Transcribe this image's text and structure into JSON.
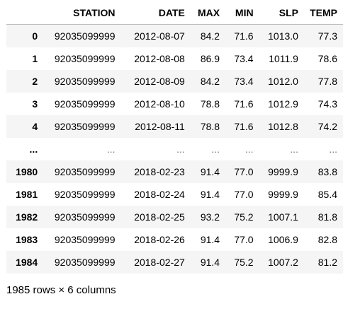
{
  "table": {
    "columns": [
      "",
      "STATION",
      "DATE",
      "MAX",
      "MIN",
      "SLP",
      "TEMP"
    ],
    "rows": [
      {
        "index": "0",
        "cells": [
          "92035099999",
          "2012-08-07",
          "84.2",
          "71.6",
          "1013.0",
          "77.3"
        ]
      },
      {
        "index": "1",
        "cells": [
          "92035099999",
          "2012-08-08",
          "86.9",
          "73.4",
          "1011.9",
          "78.6"
        ]
      },
      {
        "index": "2",
        "cells": [
          "92035099999",
          "2012-08-09",
          "84.2",
          "73.4",
          "1012.0",
          "77.8"
        ]
      },
      {
        "index": "3",
        "cells": [
          "92035099999",
          "2012-08-10",
          "78.8",
          "71.6",
          "1012.9",
          "74.3"
        ]
      },
      {
        "index": "4",
        "cells": [
          "92035099999",
          "2012-08-11",
          "78.8",
          "71.6",
          "1012.8",
          "74.2"
        ]
      },
      {
        "index": "...",
        "cells": [
          "...",
          "...",
          "...",
          "...",
          "...",
          "..."
        ]
      },
      {
        "index": "1980",
        "cells": [
          "92035099999",
          "2018-02-23",
          "91.4",
          "77.0",
          "9999.9",
          "83.8"
        ]
      },
      {
        "index": "1981",
        "cells": [
          "92035099999",
          "2018-02-24",
          "91.4",
          "77.0",
          "9999.9",
          "85.4"
        ]
      },
      {
        "index": "1982",
        "cells": [
          "92035099999",
          "2018-02-25",
          "93.2",
          "75.2",
          "1007.1",
          "81.8"
        ]
      },
      {
        "index": "1983",
        "cells": [
          "92035099999",
          "2018-02-26",
          "91.4",
          "77.0",
          "1006.9",
          "82.8"
        ]
      },
      {
        "index": "1984",
        "cells": [
          "92035099999",
          "2018-02-27",
          "91.4",
          "75.2",
          "1007.2",
          "81.2"
        ]
      }
    ]
  },
  "footer": {
    "shape_text": "1985 rows × 6 columns"
  },
  "colors": {
    "stripe": "#f5f5f5",
    "header_border": "#bdbdbd",
    "ellipsis": "#777777"
  }
}
